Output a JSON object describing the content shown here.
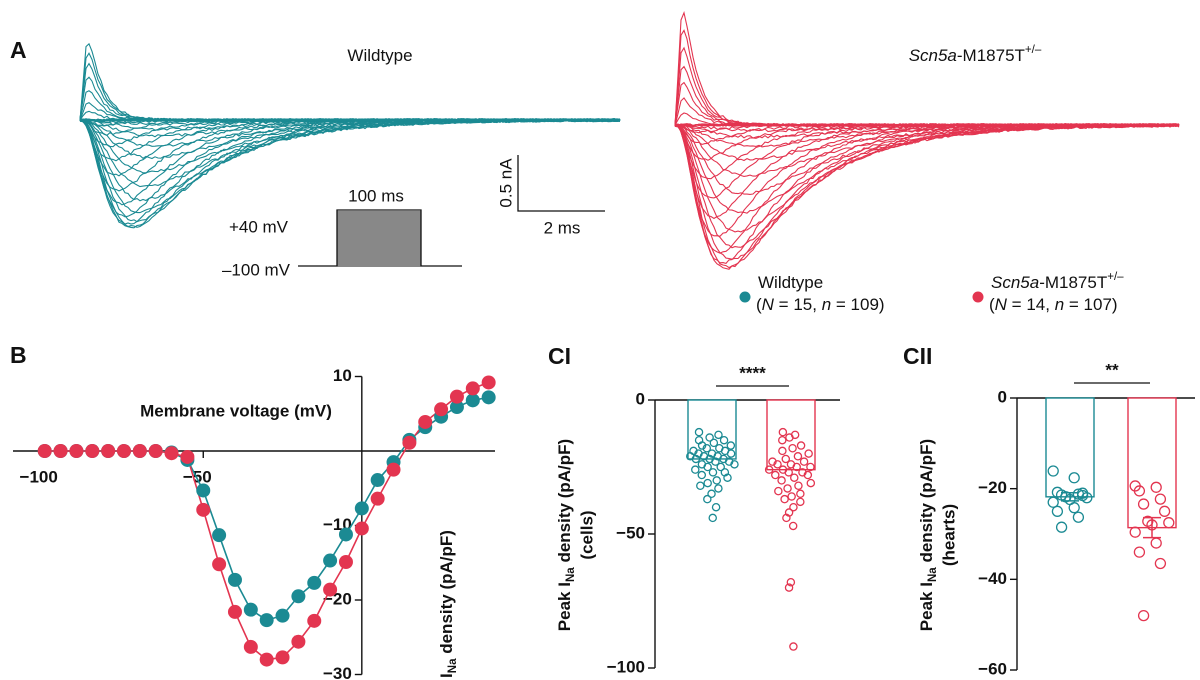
{
  "panel_labels": {
    "a": "A",
    "b": "B",
    "c1": "CI",
    "c2": "CII"
  },
  "panel_a": {
    "titles": [
      [
        {
          "t": "Wildtype"
        }
      ],
      [
        {
          "t": "Scn5a",
          "s": "i"
        },
        {
          "t": "-M1875T"
        },
        {
          "t": "+/–",
          "s": "sup"
        }
      ]
    ],
    "protocol": {
      "duration": "100 ms",
      "step_top": "+40 mV",
      "holding": "–100 mV"
    },
    "scale_bar": {
      "current": "0.5 nA",
      "time": "2 ms"
    },
    "legend": [
      {
        "color": "#1b8a93",
        "name": [
          {
            "t": "Wildtype"
          }
        ],
        "detail": [
          {
            "t": "("
          },
          {
            "t": "N",
            "s": "i"
          },
          {
            "t": " = 15, "
          },
          {
            "t": "n",
            "s": "i"
          },
          {
            "t": " = 109)"
          }
        ]
      },
      {
        "color": "#e33550",
        "name": [
          {
            "t": "Scn5a",
            "s": "i"
          },
          {
            "t": "-M1875T"
          },
          {
            "t": "+/–",
            "s": "sup"
          }
        ],
        "detail": [
          {
            "t": "("
          },
          {
            "t": "N",
            "s": "i"
          },
          {
            "t": " = 14, "
          },
          {
            "t": "n",
            "s": "i"
          },
          {
            "t": " = 107)"
          }
        ]
      }
    ]
  },
  "chart_data": [
    {
      "type": "iv-curve",
      "x_label": "Membrane voltage (mV)",
      "y_label": [
        {
          "t": "I"
        },
        {
          "t": "Na",
          "s": "sub"
        },
        {
          "t": " density (pA/pF)"
        }
      ],
      "x": [
        -100,
        -95,
        -90,
        -85,
        -80,
        -75,
        -70,
        -65,
        -60,
        -55,
        -50,
        -45,
        -40,
        -35,
        -30,
        -25,
        -20,
        -15,
        -10,
        -5,
        0,
        5,
        10,
        15,
        20,
        25,
        30,
        35,
        40
      ],
      "series": [
        {
          "color": "#1b8a93",
          "values": [
            0,
            0,
            0,
            0,
            0,
            0,
            0,
            0,
            -0.2,
            -1.2,
            -5.3,
            -11.3,
            -17.3,
            -21.3,
            -22.7,
            -22.1,
            -19.5,
            -17.7,
            -14.7,
            -11.2,
            -7.7,
            -3.9,
            -1.5,
            1.5,
            3.2,
            4.6,
            5.9,
            6.8,
            7.2
          ]
        },
        {
          "color": "#e33550",
          "values": [
            0,
            0,
            0,
            0,
            0,
            0,
            0,
            0,
            -0.3,
            -0.8,
            -7.9,
            -15.2,
            -21.6,
            -26.3,
            -28.0,
            -27.7,
            -25.6,
            -22.8,
            -18.6,
            -14.9,
            -10.4,
            -6.4,
            -2.5,
            1.1,
            3.9,
            5.6,
            7.3,
            8.4,
            9.2
          ]
        }
      ],
      "xlim": [
        -110,
        42
      ],
      "ylim": [
        -30,
        10
      ],
      "xticks": [
        {
          "value": -100,
          "label": "−100"
        },
        {
          "value": -50,
          "label": "−50"
        }
      ],
      "yticks": [
        10,
        {
          "value": -10,
          "label": "−10"
        },
        {
          "value": -20,
          "label": "−20"
        },
        {
          "value": -30,
          "label": "−30"
        }
      ]
    },
    {
      "type": "bar-dots",
      "y_label": [
        {
          "t": "Peak I"
        },
        {
          "t": "Na",
          "s": "sub"
        },
        {
          "t": " density (pA/pF)"
        }
      ],
      "y_label_2": "(cells)",
      "ylim": [
        -100,
        0
      ],
      "yticks": [
        0,
        {
          "value": -50,
          "label": "−50"
        },
        {
          "value": -100,
          "label": "−100"
        }
      ],
      "significance": "****",
      "series": [
        {
          "color": "#1b8a93",
          "mean": -22,
          "points": [
            -12,
            -13,
            -14,
            -15,
            -15,
            -16,
            -17,
            -17,
            -18,
            -18,
            -19,
            -19,
            -20,
            -20,
            -20,
            -21,
            -21,
            -21,
            -22,
            -22,
            -22,
            -23,
            -23,
            -24,
            -24,
            -25,
            -25,
            -26,
            -27,
            -27,
            -28,
            -29,
            -30,
            -31,
            -32,
            -33,
            -35,
            -37,
            -40,
            -44
          ]
        },
        {
          "color": "#e33550",
          "mean": -26,
          "points": [
            -12,
            -13,
            -14,
            -15,
            -17,
            -18,
            -19,
            -20,
            -21,
            -22,
            -23,
            -23,
            -24,
            -24,
            -25,
            -25,
            -26,
            -26,
            -27,
            -27,
            -28,
            -28,
            -29,
            -30,
            -31,
            -32,
            -33,
            -34,
            -35,
            -36,
            -37,
            -38,
            -40,
            -42,
            -44,
            -47,
            -68,
            -70,
            -92
          ]
        }
      ]
    },
    {
      "type": "bar-dots",
      "y_label": [
        {
          "t": "Peak I"
        },
        {
          "t": "Na",
          "s": "sub"
        },
        {
          "t": " density (pA/pF)"
        }
      ],
      "y_label_2": "(hearts)",
      "ylim": [
        -60,
        0
      ],
      "yticks": [
        0,
        {
          "value": -20,
          "label": "−20"
        },
        {
          "value": -40,
          "label": "−40"
        },
        {
          "value": -60,
          "label": "−60"
        }
      ],
      "significance": "**",
      "series": [
        {
          "color": "#1b8a93",
          "mean": -21.8,
          "sem": 0.9,
          "points": [
            -16.1,
            -17.6,
            -20.8,
            -21.2,
            -21.4,
            -21.5,
            -21.8,
            -22.0,
            -22.4,
            -23.0,
            -24.2,
            -25.0,
            -26.3,
            -28.5,
            -21.0
          ]
        },
        {
          "color": "#e33550",
          "mean": -28.6,
          "sem": 2.2,
          "points": [
            -19.4,
            -19.7,
            -20.5,
            -22.3,
            -23.4,
            -25.0,
            -27.2,
            -27.5,
            -28.0,
            -29.6,
            -32.0,
            -34.0,
            -36.5,
            -48.0
          ]
        }
      ]
    }
  ]
}
